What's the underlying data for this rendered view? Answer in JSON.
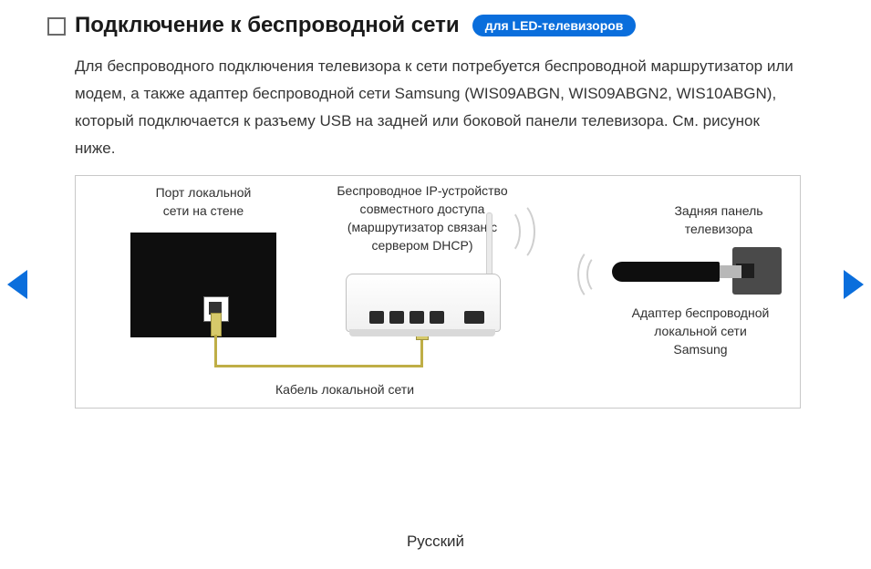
{
  "heading": {
    "title": "Подключение к беспроводной сети",
    "pill": "для LED-телевизоров"
  },
  "paragraph": "Для беспроводного подключения телевизора к сети потребуется беспроводной маршрутизатор или модем, а также адаптер беспроводной сети Samsung (WIS09ABGN, WIS09ABGN2, WIS10ABGN), который подключается к разъему USB на задней или боковой панели телевизора. См. рисунок ниже.",
  "diagram": {
    "wall_port_label": "Порт локальной\nсети на стене",
    "router_label": "Беспроводное IP-устройство\nсовместного доступа\n(маршрутизатор связан с\nсервером DHCP)",
    "tv_back_label": "Задняя панель\nтелевизора",
    "adapter_label": "Адаптер беспроводной\nлокальной сети\nSamsung",
    "cable_label": "Кабель локальной сети"
  },
  "footer": {
    "language": "Русский"
  },
  "colors": {
    "accent": "#0a6edc",
    "text": "#2d2d2d",
    "border": "#c8c8c8",
    "cable": "#bfae46"
  }
}
